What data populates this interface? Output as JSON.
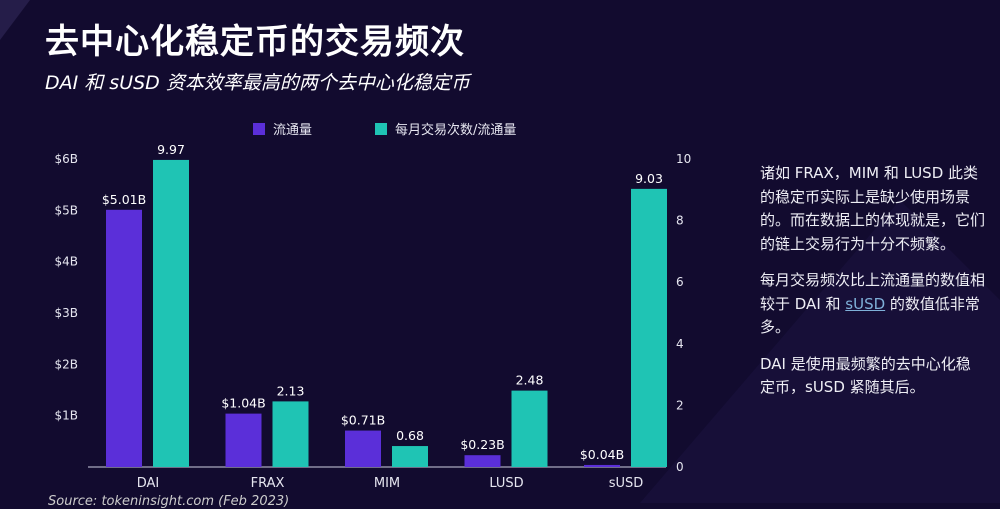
{
  "title": "去中心化稳定币的交易频次",
  "subtitle": "DAI 和 sUSD 资本效率最高的两个去中心化稳定币",
  "colors": {
    "background": "#120b2f",
    "circulation": "#5b2fd9",
    "tx_ratio": "#1fc4b4"
  },
  "notes": {
    "p1": "诸如 FRAX，MIM 和 LUSD 此类的稳定币实际上是缺少使用场景的。而在数据上的体现就是，它们的链上交易行为十分不频繁。",
    "p2_a": "每月交易频次比上流通量的数值相较于 DAI 和 ",
    "p2_link": "sUSD",
    "p2_b": " 的数值低非常多。",
    "p3": "DAI 是使用最频繁的去中心化稳定币，sUSD 紧随其后。"
  },
  "source": "Source: tokeninsight.com (Feb 2023)",
  "chart_data": {
    "type": "bar",
    "categories": [
      "DAI",
      "FRAX",
      "MIM",
      "LUSD",
      "sUSD"
    ],
    "series": [
      {
        "name": "流通量",
        "axis": "left",
        "values": [
          5.01,
          1.04,
          0.71,
          0.23,
          0.04
        ],
        "labels": [
          "$5.01B",
          "$1.04B",
          "$0.71B",
          "$0.23B",
          "$0.04B"
        ]
      },
      {
        "name": "每月交易次数/流通量",
        "axis": "right",
        "values": [
          9.97,
          2.13,
          0.68,
          2.48,
          9.03
        ],
        "labels": [
          "9.97",
          "2.13",
          "0.68",
          "2.48",
          "9.03"
        ]
      }
    ],
    "left_axis": {
      "ylim": [
        0,
        6
      ],
      "ticks": [
        "$1B",
        "$2B",
        "$3B",
        "$4B",
        "$5B",
        "$6B"
      ]
    },
    "right_axis": {
      "ylim": [
        0,
        10
      ],
      "ticks": [
        "0",
        "2",
        "4",
        "6",
        "8",
        "10"
      ]
    },
    "legend": "top",
    "grid": false
  }
}
